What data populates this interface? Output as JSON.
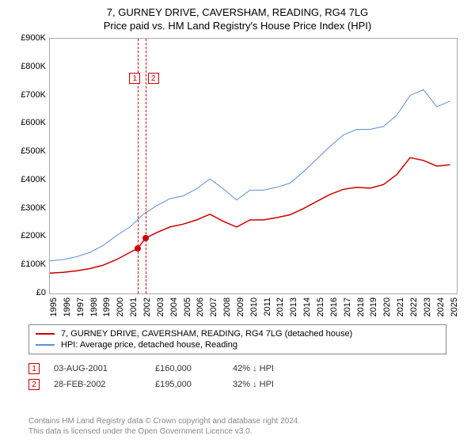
{
  "chart": {
    "title_line1": "7, GURNEY DRIVE, CAVERSHAM, READING, RG4 7LG",
    "title_line2": "Price paid vs. HM Land Registry's House Price Index (HPI)",
    "type": "line",
    "background_color": "#ffffff",
    "grid_color": "#cccccc",
    "x_years": [
      1995,
      1996,
      1997,
      1998,
      1999,
      2000,
      2001,
      2002,
      2003,
      2004,
      2005,
      2006,
      2007,
      2008,
      2009,
      2010,
      2011,
      2012,
      2013,
      2014,
      2015,
      2016,
      2017,
      2018,
      2019,
      2020,
      2021,
      2022,
      2023,
      2024,
      2025
    ],
    "xlim": [
      1995,
      2025.5
    ],
    "ylim": [
      0,
      900
    ],
    "ytick_step": 100,
    "ylabels": [
      "£0",
      "£100K",
      "£200K",
      "£300K",
      "£400K",
      "£500K",
      "£600K",
      "£700K",
      "£800K",
      "£900K"
    ],
    "title_fontsize": 13,
    "axis_fontsize": 11,
    "series": [
      {
        "name": "property",
        "label": "7, GURNEY DRIVE, CAVERSHAM, READING, RG4 7LG (detached house)",
        "color": "#cc0000",
        "line_width": 1.5,
        "points_x": [
          1995,
          1996,
          1997,
          1998,
          1999,
          2000,
          2001,
          2001.6,
          2002.16,
          2003,
          2004,
          2005,
          2006,
          2007,
          2008,
          2009,
          2010,
          2011,
          2012,
          2013,
          2014,
          2015,
          2016,
          2017,
          2018,
          2019,
          2020,
          2021,
          2022,
          2023,
          2024,
          2025
        ],
        "points_y": [
          72,
          75,
          80,
          88,
          100,
          120,
          145,
          160,
          195,
          215,
          235,
          245,
          260,
          280,
          255,
          235,
          260,
          260,
          268,
          278,
          300,
          325,
          350,
          368,
          375,
          372,
          385,
          420,
          480,
          470,
          450,
          455
        ]
      },
      {
        "name": "hpi",
        "label": "HPI: Average price, detached house, Reading",
        "color": "#5b8fd6",
        "line_width": 1,
        "points_x": [
          1995,
          1996,
          1997,
          1998,
          1999,
          2000,
          2001,
          2002,
          2003,
          2004,
          2005,
          2006,
          2007,
          2008,
          2009,
          2010,
          2011,
          2012,
          2013,
          2014,
          2015,
          2016,
          2017,
          2018,
          2019,
          2020,
          2021,
          2022,
          2023,
          2024,
          2025
        ],
        "points_y": [
          115,
          120,
          130,
          145,
          170,
          205,
          235,
          280,
          310,
          335,
          345,
          370,
          405,
          370,
          330,
          365,
          365,
          375,
          390,
          430,
          475,
          520,
          560,
          580,
          580,
          590,
          630,
          700,
          720,
          660,
          680
        ]
      }
    ],
    "markers": [
      {
        "id": "1",
        "x": 2001.6,
        "y": 160,
        "vline_color": "#cc0000"
      },
      {
        "id": "2",
        "x": 2002.16,
        "y": 195,
        "vline_color": "#cc0000"
      }
    ],
    "marker_dot_color": "#cc0000",
    "marker_box_border": "#cc0000",
    "marker_label_top_y": 780
  },
  "legend": {
    "border_color": "#888888"
  },
  "transactions": [
    {
      "id": "1",
      "date": "03-AUG-2001",
      "price": "£160,000",
      "pct": "42% ↓ HPI"
    },
    {
      "id": "2",
      "date": "28-FEB-2002",
      "price": "£195,000",
      "pct": "32% ↓ HPI"
    }
  ],
  "footer": {
    "line1": "Contains HM Land Registry data © Crown copyright and database right 2024.",
    "line2": "This data is licensed under the Open Government Licence v3.0."
  }
}
